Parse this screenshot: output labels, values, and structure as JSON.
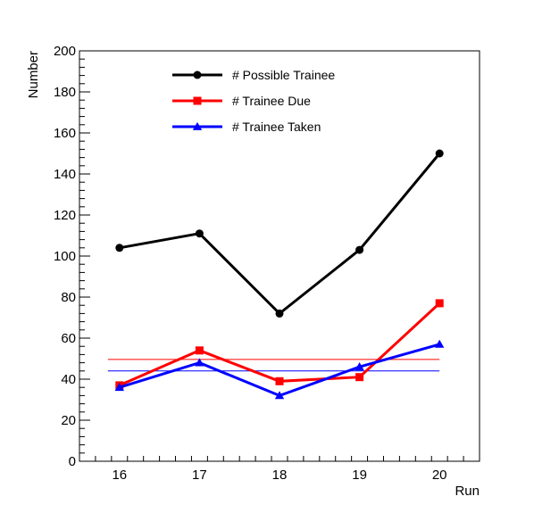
{
  "chart_data": {
    "type": "line",
    "xlabel": "Run",
    "ylabel": "Number",
    "x": [
      16,
      17,
      18,
      19,
      20
    ],
    "xlim": [
      15.5,
      20.5
    ],
    "ylim": [
      0,
      200
    ],
    "y_ticks": [
      0,
      20,
      40,
      60,
      80,
      100,
      120,
      140,
      160,
      180,
      200
    ],
    "x_ticks": [
      16,
      17,
      18,
      19,
      20
    ],
    "grid": false,
    "legend_position": "top-left",
    "series": [
      {
        "name": "# Possible Trainee",
        "values": [
          104,
          111,
          72,
          103,
          150
        ],
        "color": "#000000",
        "marker": "circle"
      },
      {
        "name": "# Trainee Due",
        "values": [
          37,
          54,
          39,
          41,
          77
        ],
        "color": "#ff0000",
        "marker": "square"
      },
      {
        "name": "# Trainee Taken",
        "values": [
          36,
          48,
          32,
          46,
          57
        ],
        "color": "#0000ff",
        "marker": "triangle"
      }
    ],
    "reference_lines": [
      {
        "value": 49.6,
        "color": "#ff0000"
      },
      {
        "value": 44,
        "color": "#0000ff"
      }
    ]
  }
}
